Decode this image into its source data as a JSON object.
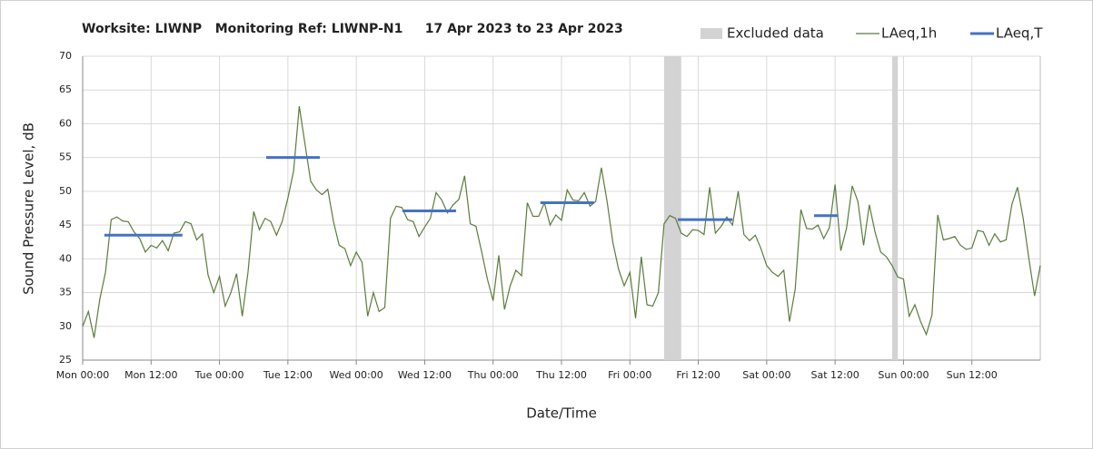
{
  "chart_data": {
    "type": "line",
    "title": "Worksite: LIWNP   Monitoring Ref: LIWNP-N1     17 Apr 2023 to 23 Apr 2023",
    "xlabel": "Date/Time",
    "ylabel": "Sound Pressure Level, dB",
    "xlim": [
      0,
      168
    ],
    "ylim": [
      25,
      70
    ],
    "yticks": [
      25,
      30,
      35,
      40,
      45,
      50,
      55,
      60,
      65,
      70
    ],
    "xticks": [
      {
        "value": 0,
        "label": "Mon 00:00"
      },
      {
        "value": 12,
        "label": "Mon 12:00"
      },
      {
        "value": 24,
        "label": "Tue 00:00"
      },
      {
        "value": 36,
        "label": "Tue 12:00"
      },
      {
        "value": 48,
        "label": "Wed 00:00"
      },
      {
        "value": 60,
        "label": "Wed 12:00"
      },
      {
        "value": 72,
        "label": "Thu 00:00"
      },
      {
        "value": 84,
        "label": "Thu 12:00"
      },
      {
        "value": 96,
        "label": "Fri 00:00"
      },
      {
        "value": 108,
        "label": "Fri 12:00"
      },
      {
        "value": 120,
        "label": "Sat 00:00"
      },
      {
        "value": 132,
        "label": "Sat 12:00"
      },
      {
        "value": 144,
        "label": "Sun 00:00"
      },
      {
        "value": 156,
        "label": "Sun 12:00"
      }
    ],
    "grid": true,
    "legend": "top-right",
    "excluded": {
      "name": "Excluded data",
      "color": "#d3d3d3",
      "x_start": [
        102,
        142
      ],
      "x_end": [
        105,
        143
      ]
    },
    "series": [
      {
        "name": "LAeq,1h",
        "color": "#5b7c3a",
        "x": [
          0,
          1,
          2,
          3,
          4,
          5,
          6,
          7,
          8,
          9,
          10,
          11,
          12,
          13,
          14,
          15,
          16,
          17,
          18,
          19,
          20,
          21,
          22,
          23,
          24,
          25,
          26,
          27,
          28,
          29,
          30,
          31,
          32,
          33,
          34,
          35,
          36,
          37,
          38,
          39,
          40,
          41,
          42,
          43,
          44,
          45,
          46,
          47,
          48,
          49,
          50,
          51,
          52,
          53,
          54,
          55,
          56,
          57,
          58,
          59,
          60,
          61,
          62,
          63,
          64,
          65,
          66,
          67,
          68,
          69,
          70,
          71,
          72,
          73,
          74,
          75,
          76,
          77,
          78,
          79,
          80,
          81,
          82,
          83,
          84,
          85,
          86,
          87,
          88,
          89,
          90,
          91,
          92,
          93,
          94,
          95,
          96,
          97,
          98,
          99,
          100,
          101,
          102,
          103,
          104,
          105,
          106,
          107,
          108,
          109,
          110,
          111,
          112,
          113,
          114,
          115,
          116,
          117,
          118,
          119,
          120,
          121,
          122,
          123,
          124,
          125,
          126,
          127,
          128,
          129,
          130,
          131,
          132,
          133,
          134,
          135,
          136,
          137,
          138,
          139,
          140,
          141,
          142,
          143,
          144,
          145,
          146,
          147,
          148,
          149,
          150,
          151,
          152,
          153,
          154,
          155,
          156,
          157,
          158,
          159,
          160,
          161,
          162,
          163,
          164,
          165,
          166,
          167,
          168
        ],
        "values": [
          30,
          32.2,
          28.3,
          34,
          38,
          45.8,
          46.2,
          45.6,
          45.5,
          44,
          43,
          41,
          42,
          41.6,
          42.7,
          41.2,
          43.8,
          44,
          45.5,
          45.2,
          42.8,
          43.7,
          37.6,
          35,
          37.4,
          33,
          35,
          37.8,
          31.5,
          38,
          47,
          44.3,
          46,
          45.5,
          43.5,
          45.5,
          49,
          53,
          62.6,
          57,
          51.5,
          50.2,
          49.5,
          50.3,
          45.5,
          42,
          41.5,
          39,
          41,
          39.5,
          31.5,
          35,
          32.2,
          32.8,
          46,
          47.8,
          47.6,
          45.8,
          45.5,
          43.3,
          44.7,
          46,
          49.8,
          48.7,
          46.8,
          48,
          48.8,
          52.3,
          45.2,
          44.8,
          41,
          37,
          33.8,
          40.5,
          32.5,
          36,
          38.3,
          37.5,
          48.3,
          46.3,
          46.3,
          48.3,
          45,
          46.5,
          45.7,
          50.2,
          48.7,
          48.6,
          49.8,
          47.8,
          48.5,
          53.5,
          48.5,
          42.5,
          38.5,
          36,
          38,
          31.2,
          40.3,
          33.2,
          33,
          35,
          45.2,
          46.4,
          46,
          43.8,
          43.3,
          44.3,
          44.2,
          43.6,
          50.6,
          43.8,
          44.8,
          46.2,
          45,
          50,
          43.6,
          42.7,
          43.5,
          41.5,
          39,
          38,
          37.4,
          38.3,
          30.7,
          35.5,
          47.3,
          44.5,
          44.4,
          45,
          43,
          44.6,
          51,
          41.2,
          44.5,
          50.8,
          48.5,
          42,
          48,
          44,
          41,
          40.3,
          39,
          37.3,
          37,
          31.5,
          33.2,
          30.7,
          28.8,
          31.7,
          46.5,
          42.8,
          43,
          43.3,
          42,
          41.4,
          41.6,
          44.2,
          44,
          42,
          43.7,
          42.5,
          42.8,
          48,
          50.6,
          46,
          40,
          34.5,
          39
        ]
      },
      {
        "name": "LAeq,T",
        "color": "#4472c4",
        "x_start": [
          3.8,
          32.2,
          56.1,
          80.3,
          104.4,
          128.3
        ],
        "x_end": [
          17.5,
          41.6,
          65.5,
          89.7,
          114,
          132.5
        ],
        "values": [
          43.5,
          55,
          47.1,
          48.3,
          45.8,
          46.4
        ]
      }
    ]
  }
}
